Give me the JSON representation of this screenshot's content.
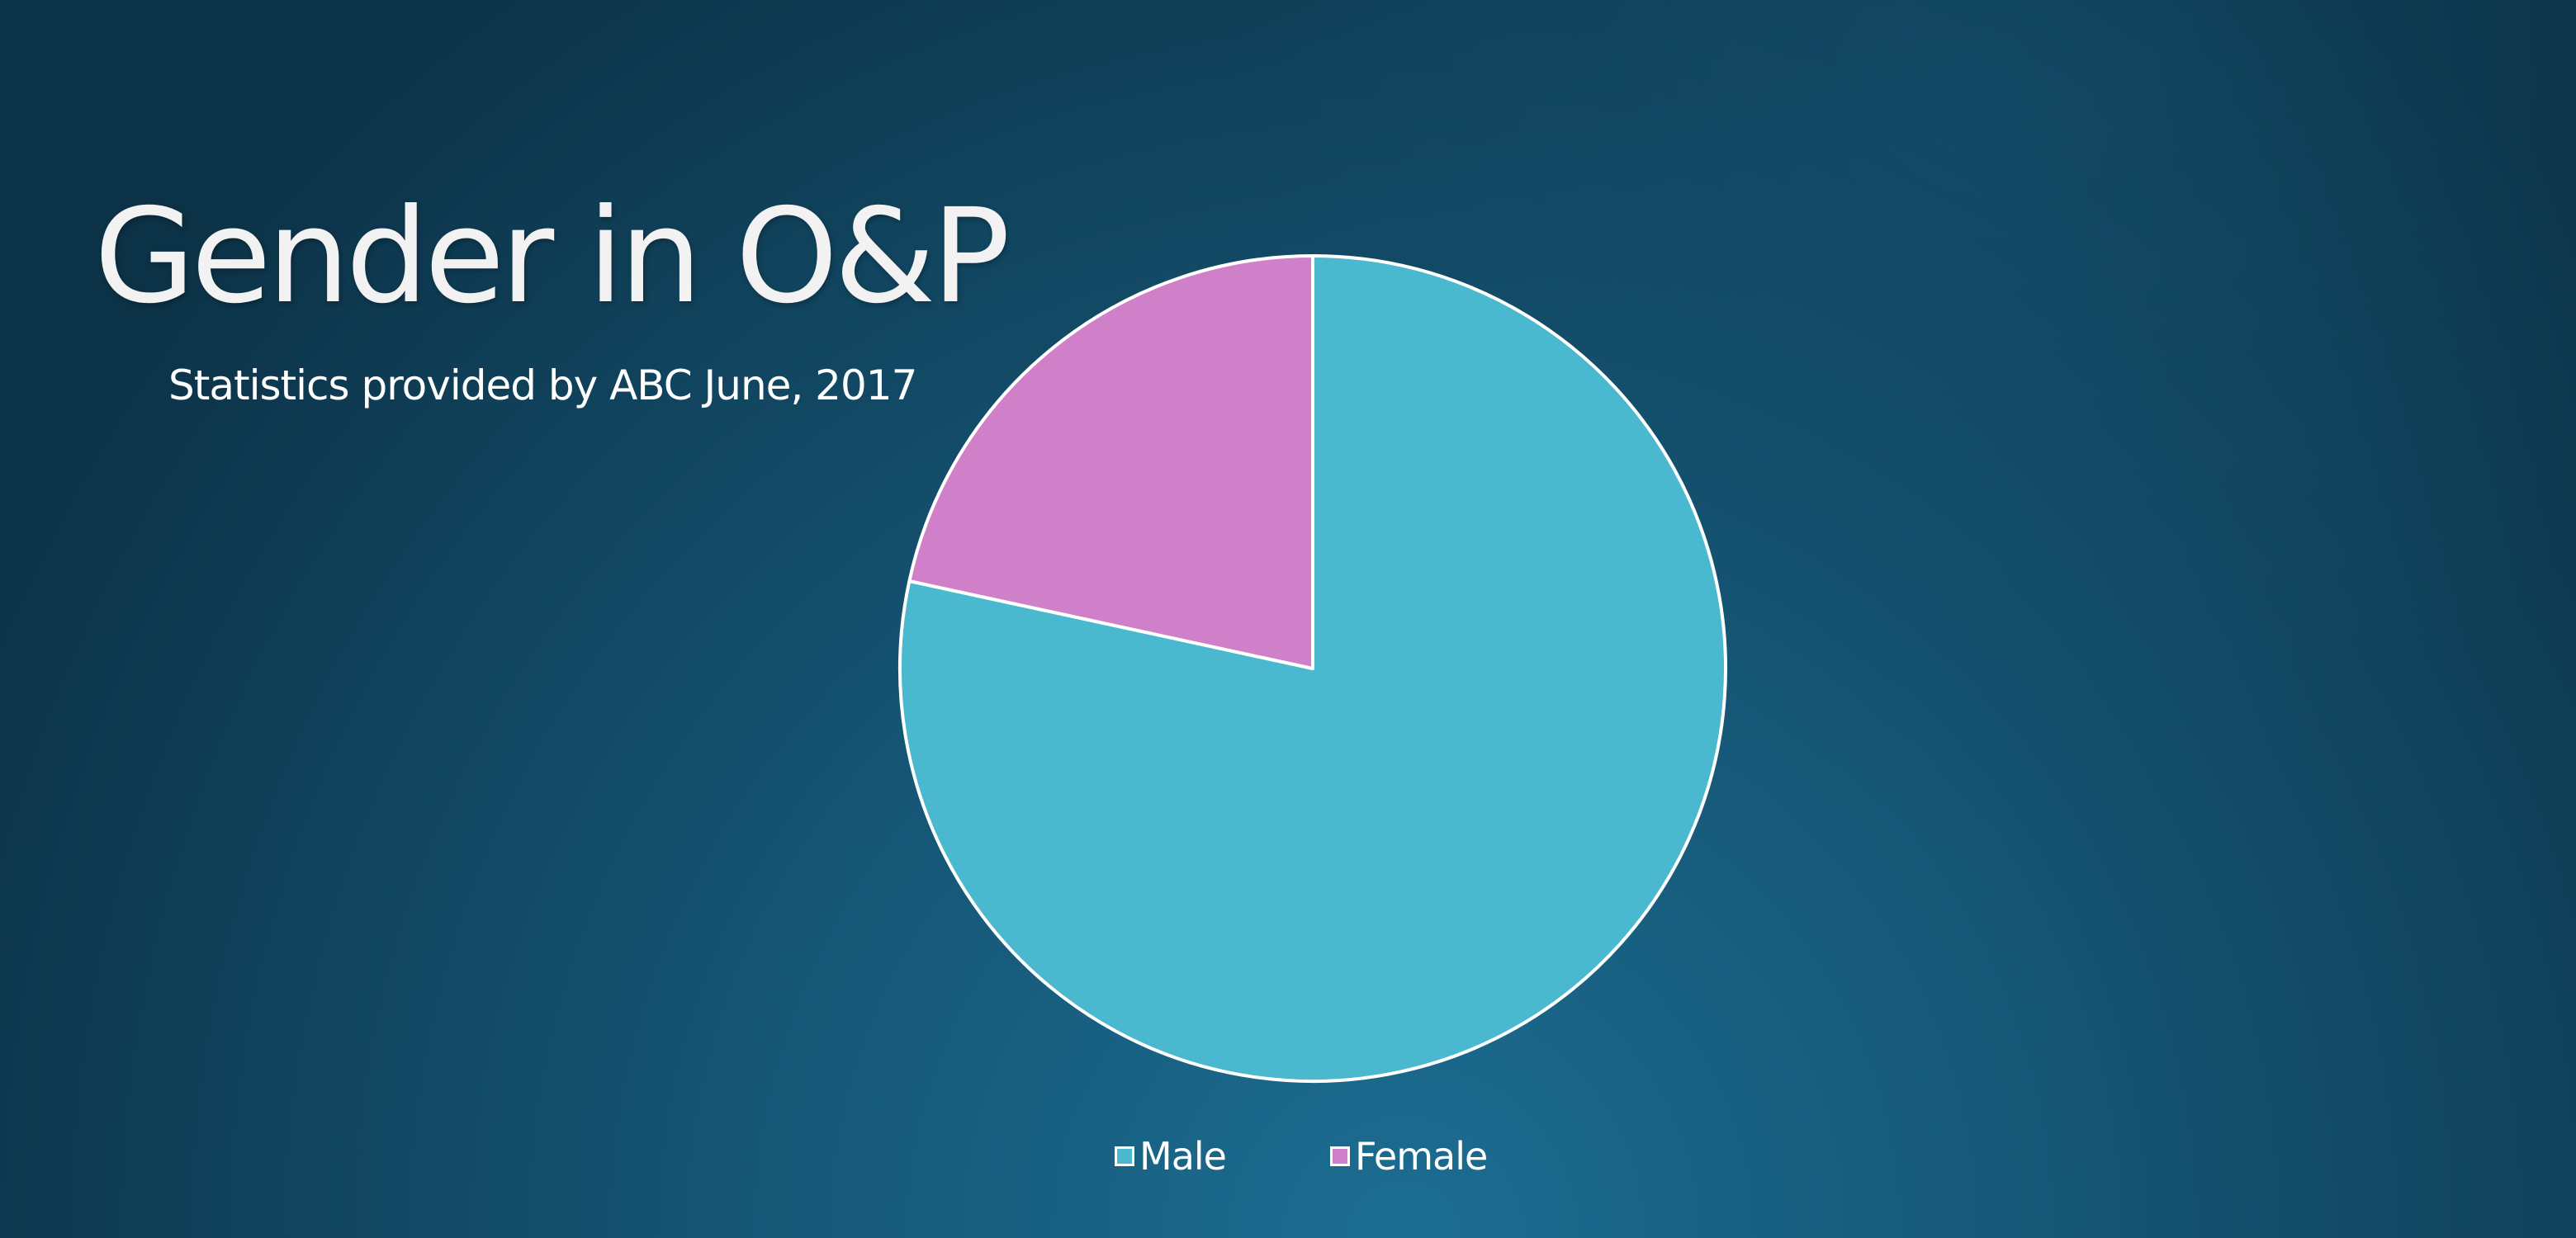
{
  "slide": {
    "title": "Gender in O&P",
    "subtitle": "Statistics provided by ABC June, 2017"
  },
  "chart_data": {
    "type": "pie",
    "categories": [
      "Male",
      "Female"
    ],
    "values": [
      78.4,
      21.6
    ],
    "unit": "%",
    "start": "12 o'clock",
    "direction": "clockwise",
    "colors": [
      "#4ab8cf",
      "#cf80c8"
    ],
    "slice_border_color": "#ffffff",
    "legend": {
      "position": "bottom",
      "entries": [
        "Male",
        "Female"
      ]
    },
    "data_labels": false
  },
  "theme": {
    "background_top": "#0e3a52",
    "background_bottom": "#1b6a8e",
    "text_color": "#ffffff"
  }
}
